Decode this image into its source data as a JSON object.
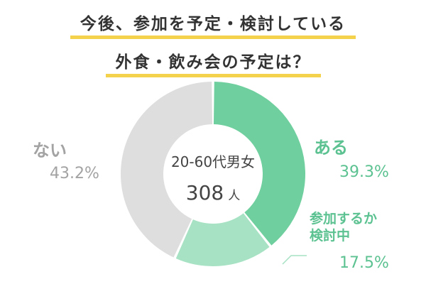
{
  "header": {
    "line1": "今後、参加を予定・検討している",
    "line2": "外食・飲み会の予定は？"
  },
  "center": {
    "label": "20-60代男女",
    "count": "308",
    "unit": "人"
  },
  "chart_data": {
    "type": "pie",
    "donut": true,
    "title": "今後、参加を予定・検討している 外食・飲み会の予定は？",
    "categories": [
      "ある",
      "参加するか検討中",
      "ない"
    ],
    "values": [
      39.3,
      17.5,
      43.2
    ],
    "unit": "%",
    "colors": [
      "#6fcf9e",
      "#a6e2c3",
      "#dedede"
    ],
    "label_colors": [
      "#5cc291",
      "#5cc291",
      "#a3a3a3"
    ],
    "labels": [
      {
        "name_lines": [
          "ある"
        ],
        "pct": "39.3",
        "pct_unit": "%"
      },
      {
        "name_lines": [
          "参加するか",
          "検討中"
        ],
        "pct": "17.5",
        "pct_unit": "%"
      },
      {
        "name_lines": [
          "ない"
        ],
        "pct": "43.2",
        "pct_unit": "%"
      }
    ]
  }
}
